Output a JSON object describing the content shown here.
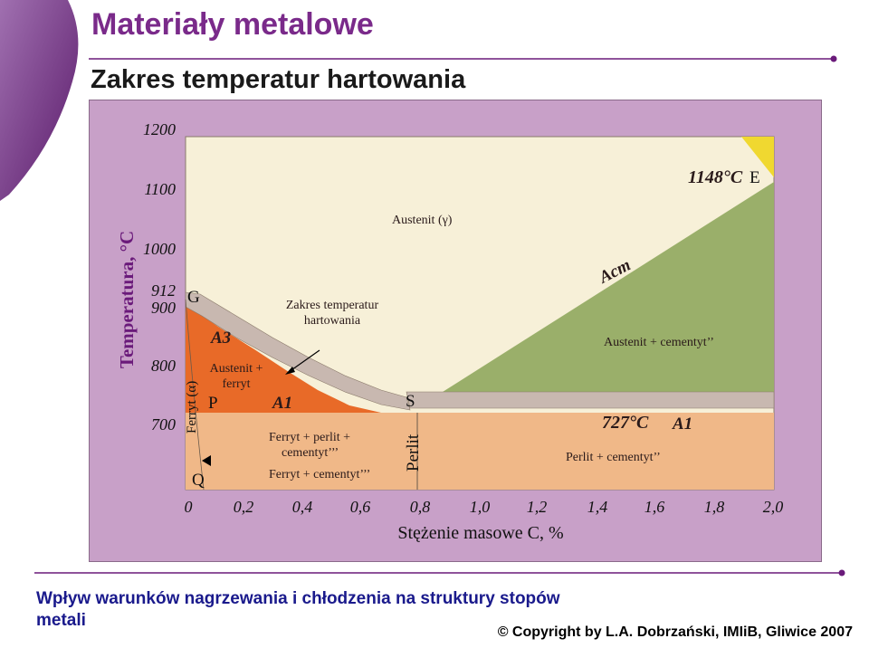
{
  "header": {
    "title": "Materiały metalowe",
    "subtitle": "Zakres temperatur hartowania"
  },
  "colors": {
    "title": "#7a2a8a",
    "panel_background": "#c8a0c8",
    "austenite_region": "#f7f0d8",
    "ferrite_austenite_region": "#e86a28",
    "lower_region": "#f0b888",
    "cementite_region": "#9aaf6a",
    "band": "#c8b8b0",
    "liquidus_corner": "#f0d830",
    "accent_line": "#6a1a7a"
  },
  "diagram": {
    "y_axis_title": "Temperatura, °C",
    "y_ticks": [
      "1200",
      "1100",
      "1000",
      "912",
      "900",
      "800",
      "700"
    ],
    "x_ticks": [
      "0",
      "0,2",
      "0,4",
      "0,6",
      "0,8",
      "1,0",
      "1,2",
      "1,4",
      "1,6",
      "1,8",
      "2,0"
    ],
    "x_axis_title": "Stężenie masowe C, %",
    "points": {
      "G": "G",
      "P": "P",
      "Q": "Q",
      "S": "S",
      "E": "E"
    },
    "lines": {
      "A3": "A3",
      "A1_left": "A1",
      "A1_right": "A1",
      "Acm": "Acm"
    },
    "temperatures": {
      "eutectic": "1148°C",
      "eutectoid": "727°C"
    },
    "regions": {
      "austenite": "Austenit (γ)",
      "hardening_range": "Zakres temperatur hartowania",
      "austenite_ferrite": "Austenit + ferryt",
      "ferrite_alpha": "Ferryt (α)",
      "ferrite_pearlite": "Ferryt + perlit + cementyt’’’",
      "ferrite_cementite": "Ferryt + cementyt’’’",
      "pearlite": "Perlit",
      "austenite_cementite": "Austenit + cementyt’’",
      "pearlite_cementite": "Perlit + cementyt’’"
    }
  },
  "footer": {
    "description": "Wpływ warunków nagrzewania i chłodzenia na struktury stopów metali",
    "copyright": "© Copyright by L.A. Dobrzański, IMIiB, Gliwice 2007"
  }
}
